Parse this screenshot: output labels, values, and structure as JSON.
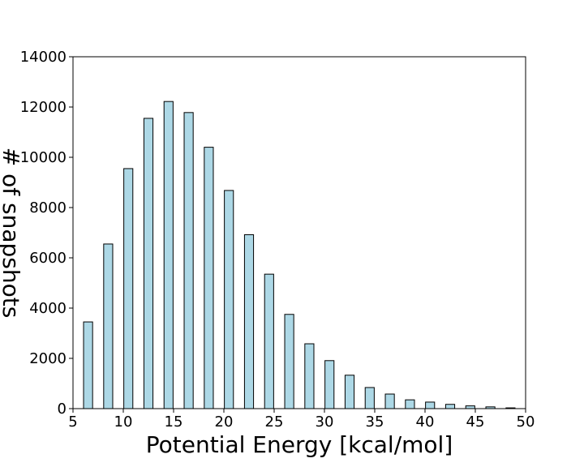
{
  "chart_data": {
    "type": "bar",
    "title": "",
    "xlabel": "Potential Energy [kcal/mol]",
    "ylabel": "# of snapshots",
    "xlim": [
      5,
      50
    ],
    "ylim": [
      0,
      14000
    ],
    "x_ticks": [
      5,
      10,
      15,
      20,
      25,
      30,
      35,
      40,
      45,
      50
    ],
    "y_ticks": [
      0,
      2000,
      4000,
      6000,
      8000,
      10000,
      12000,
      14000
    ],
    "bar_width": 0.9,
    "grid": false,
    "legend": "none",
    "bar_color": "#add8e6",
    "edge_color": "#000000",
    "x": [
      6.5,
      8.5,
      10.5,
      12.5,
      14.5,
      16.5,
      18.5,
      20.5,
      22.5,
      24.5,
      26.5,
      28.5,
      30.5,
      32.5,
      34.5,
      36.5,
      38.5,
      40.5,
      42.5,
      44.5,
      46.5,
      48.5
    ],
    "values": [
      3450,
      6550,
      9550,
      11550,
      12220,
      11780,
      10400,
      8680,
      6920,
      5350,
      3750,
      2580,
      1910,
      1330,
      840,
      580,
      350,
      260,
      170,
      110,
      70,
      30
    ]
  }
}
